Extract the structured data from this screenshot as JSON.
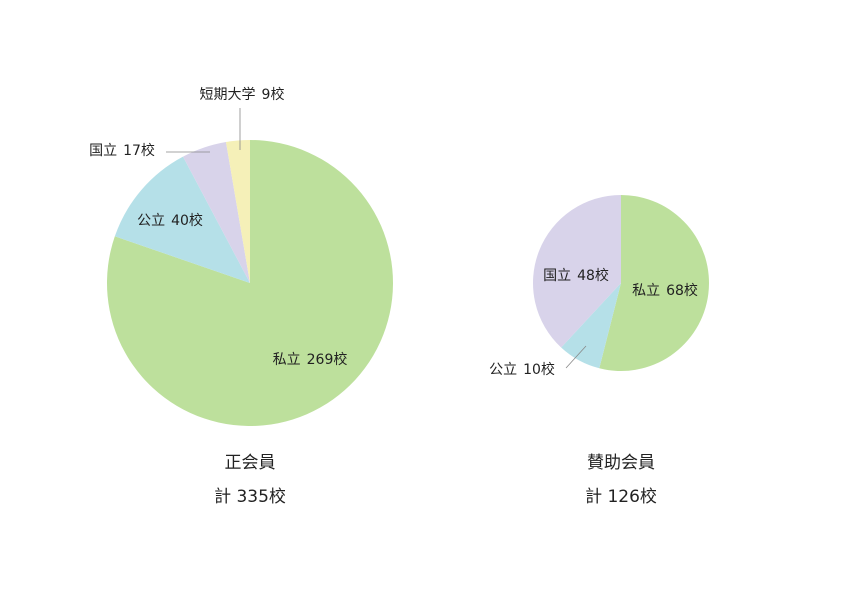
{
  "chart_data": [
    {
      "type": "pie",
      "title": "正会員",
      "subtitle": "計 335校",
      "categories": [
        "私立",
        "公立",
        "国立",
        "短期大学"
      ],
      "values": [
        269,
        40,
        17,
        9
      ],
      "value_labels": [
        "269校",
        "40校",
        "17校",
        "9校"
      ],
      "colors": [
        "#bde09c",
        "#b5e0e8",
        "#d8d3ea",
        "#f5f0b8"
      ]
    },
    {
      "type": "pie",
      "title": "賛助会員",
      "subtitle": "計 126校",
      "categories": [
        "私立",
        "公立",
        "国立"
      ],
      "values": [
        68,
        10,
        48
      ],
      "value_labels": [
        "68校",
        "10校",
        "48校"
      ],
      "colors": [
        "#bde09c",
        "#b5e0e8",
        "#d8d3ea"
      ]
    }
  ]
}
